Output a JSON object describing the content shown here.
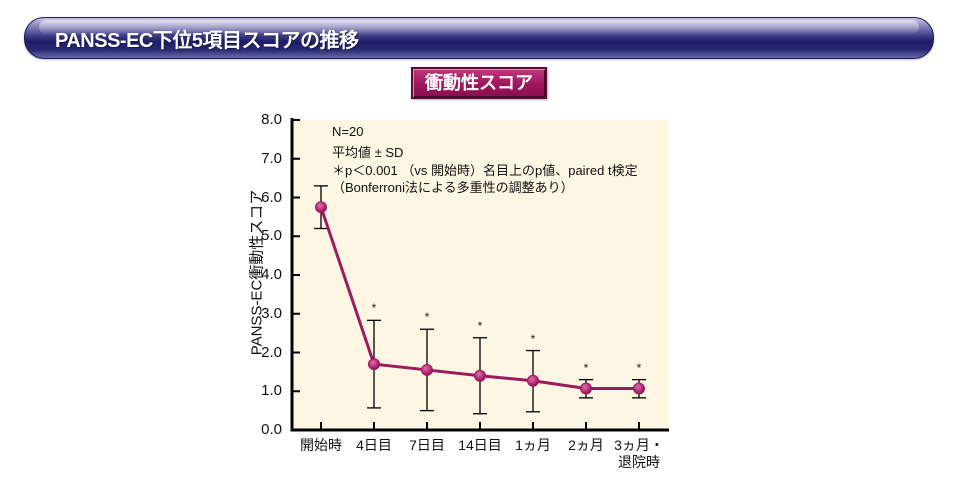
{
  "header": {
    "title": "PANSS-EC下位5項目スコアの推移"
  },
  "subtitle": {
    "label": "衝動性スコア"
  },
  "chart_data": {
    "type": "line",
    "title": "衝動性スコア",
    "xlabel": "",
    "ylabel": "PANSS-EC衝動性スコア",
    "ylim": [
      0,
      8
    ],
    "yticks": [
      "0.0",
      "1.0",
      "2.0",
      "3.0",
      "4.0",
      "5.0",
      "6.0",
      "7.0",
      "8.0"
    ],
    "categories": [
      "開始時",
      "4日目",
      "7日目",
      "14日目",
      "1ヵ月",
      "2ヵ月",
      "3ヵ月・\n退院時"
    ],
    "series": [
      {
        "name": "衝動性スコア (平均値±SD)",
        "color": "#9b1b5e",
        "values": [
          5.75,
          1.7,
          1.55,
          1.4,
          1.27,
          1.07,
          1.07
        ],
        "sd_upper": [
          6.3,
          2.83,
          2.6,
          2.38,
          2.05,
          1.3,
          1.3
        ],
        "sd_lower": [
          5.2,
          0.57,
          0.5,
          0.42,
          0.47,
          0.83,
          0.83
        ],
        "significant": [
          false,
          true,
          true,
          true,
          true,
          true,
          true
        ]
      }
    ],
    "grid": false,
    "plot_background": "#fdf6e3",
    "annotations": [
      "N=20",
      "平均値 ± SD",
      "＊p＜0.001 （vs 開始時）名目上のp値、paired t検定",
      "（Bonferroni法による多重性の調整あり）"
    ],
    "significance_marker": "＊"
  },
  "labels": {
    "x": [
      "開始時",
      "4日目",
      "7日目",
      "14日目",
      "1ヵ月",
      "2ヵ月",
      "3ヵ月・",
      "退院時"
    ]
  }
}
